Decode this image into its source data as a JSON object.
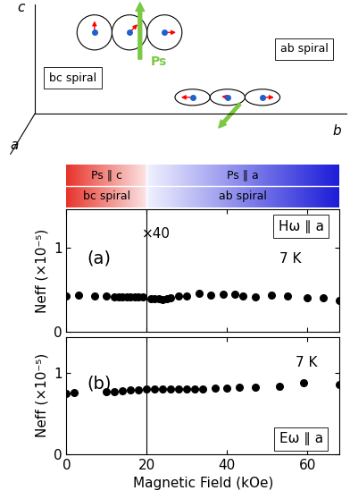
{
  "schematic": {
    "axis_labels": [
      "c",
      "a",
      "b"
    ],
    "polarization": "Ps",
    "bc_label": "bc spiral",
    "ab_label": "ab spiral"
  },
  "phase_bar": {
    "transition_field": 20,
    "left": [
      "Ps ∥ c",
      "bc spiral"
    ],
    "right": [
      "Ps ∥ a",
      "ab spiral"
    ]
  },
  "chart_data": [
    {
      "type": "scatter",
      "color": "#000000",
      "marker": "o",
      "ylabel": "Neff (×10⁻⁵)",
      "annotations": [
        "(a)",
        "×40",
        "7 K",
        "Hω ∥ a"
      ],
      "x": [
        0,
        3,
        7,
        10,
        12,
        13,
        14,
        15,
        16,
        17,
        18,
        19,
        21,
        22,
        23,
        24,
        25,
        26,
        28,
        30,
        33,
        36,
        39,
        42,
        44,
        47,
        51,
        55,
        60,
        64,
        68
      ],
      "values": [
        0.43,
        0.44,
        0.43,
        0.42,
        0.41,
        0.41,
        0.41,
        0.41,
        0.41,
        0.41,
        0.41,
        0.41,
        0.39,
        0.39,
        0.39,
        0.38,
        0.39,
        0.4,
        0.42,
        0.42,
        0.46,
        0.44,
        0.45,
        0.45,
        0.43,
        0.41,
        0.44,
        0.42,
        0.4,
        0.4,
        0.37
      ],
      "xlim": [
        0,
        68
      ],
      "ylim": [
        0,
        1.45
      ],
      "xticks": [
        0,
        20,
        40,
        60
      ],
      "yticks": [
        0,
        1
      ],
      "tick_labels": "y"
    },
    {
      "type": "scatter",
      "color": "#000000",
      "marker": "o",
      "xlabel": "Magnetic Field (kOe)",
      "ylabel": "Neff (×10⁻⁵)",
      "annotations": [
        "(b)",
        "7 K",
        "Eω ∥ a"
      ],
      "x": [
        0,
        2,
        10,
        12,
        14,
        16,
        18,
        20,
        22,
        24,
        26,
        28,
        30,
        32,
        34,
        37,
        40,
        43,
        47,
        53,
        59,
        68
      ],
      "values": [
        0.75,
        0.76,
        0.77,
        0.77,
        0.78,
        0.79,
        0.79,
        0.8,
        0.8,
        0.8,
        0.8,
        0.81,
        0.81,
        0.81,
        0.81,
        0.82,
        0.82,
        0.83,
        0.83,
        0.84,
        0.88,
        0.86
      ],
      "xlim": [
        0,
        68
      ],
      "ylim": [
        0,
        1.45
      ],
      "xticks": [
        0,
        20,
        40,
        60
      ],
      "yticks": [
        0,
        1
      ]
    }
  ]
}
